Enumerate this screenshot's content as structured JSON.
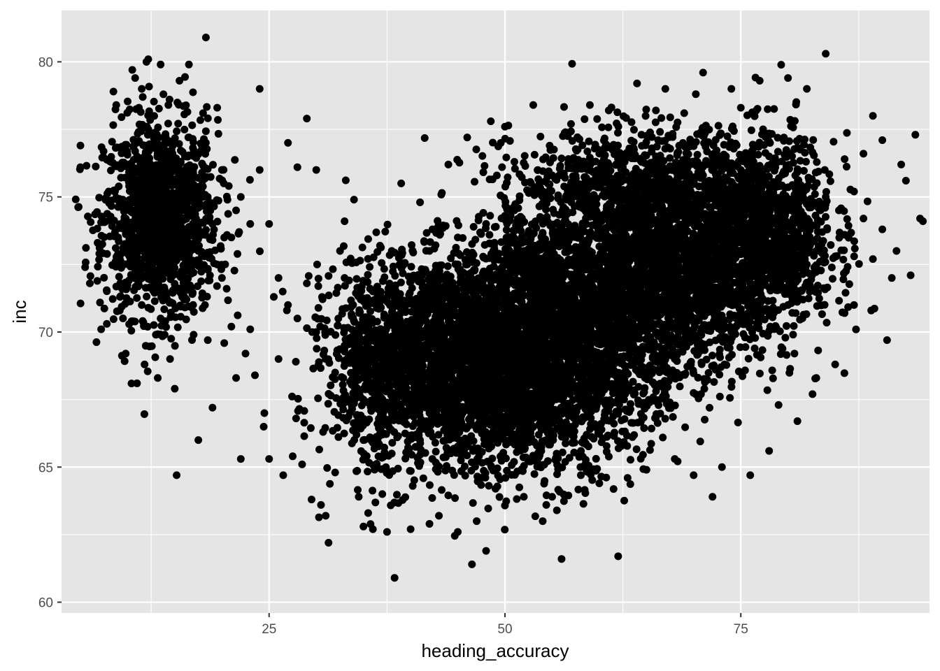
{
  "chart_data": {
    "type": "scatter",
    "title": "",
    "xlabel": "heading_accuracy",
    "ylabel": "inc",
    "xlim": [
      3,
      95
    ],
    "ylim": [
      59.6,
      81.9
    ],
    "x_ticks": [
      25,
      50,
      75
    ],
    "x_tick_labels": [
      "25",
      "50",
      "75"
    ],
    "y_ticks": [
      60,
      65,
      70,
      75,
      80
    ],
    "y_tick_labels": [
      "60",
      "65",
      "70",
      "75",
      "80"
    ],
    "grid": true,
    "legend": "none",
    "colors": {
      "panel": "#e5e5e5",
      "grid": "#ffffff",
      "point": "#000000"
    },
    "series": [
      {
        "points": [
          [
            5,
            76.9
          ],
          [
            5,
            76.1
          ],
          [
            5.5,
            72.4
          ],
          [
            6,
            71.8
          ],
          [
            7,
            72.9
          ],
          [
            7.2,
            70.1
          ],
          [
            7.8,
            70.3
          ],
          [
            8,
            75.2
          ],
          [
            8.5,
            78.9
          ],
          [
            8.8,
            78.4
          ],
          [
            9,
            73.5
          ],
          [
            9.2,
            71.3
          ],
          [
            9.5,
            74.9
          ],
          [
            9.8,
            69.2
          ],
          [
            10,
            76.2
          ],
          [
            10.2,
            72.8
          ],
          [
            10.5,
            79.7
          ],
          [
            10.8,
            79.4
          ],
          [
            11,
            68.1
          ],
          [
            11.2,
            78.3
          ],
          [
            11.5,
            79.0
          ],
          [
            11.8,
            68.8
          ],
          [
            12,
            80.0
          ],
          [
            12.2,
            70.9
          ],
          [
            12.5,
            74.3
          ],
          [
            12.8,
            73.2
          ],
          [
            13,
            69.9
          ],
          [
            13.2,
            68.3
          ],
          [
            13.5,
            79.9
          ],
          [
            13.8,
            78.8
          ],
          [
            14,
            70.4
          ],
          [
            14.5,
            69.0
          ],
          [
            15,
            67.9
          ],
          [
            15.2,
            64.7
          ],
          [
            15.5,
            79.3
          ],
          [
            16,
            71.2
          ],
          [
            16.5,
            79.9
          ],
          [
            17,
            69.9
          ],
          [
            17.5,
            66.0
          ],
          [
            18,
            78.1
          ],
          [
            18.3,
            80.9
          ],
          [
            18.5,
            69.7
          ],
          [
            19,
            67.2
          ],
          [
            19.5,
            78.3
          ],
          [
            20,
            72.0
          ],
          [
            20.5,
            71.6
          ],
          [
            21,
            70.2
          ],
          [
            21.5,
            68.3
          ],
          [
            22,
            65.3
          ],
          [
            22.5,
            69.2
          ],
          [
            23,
            70.1
          ],
          [
            23.5,
            68.4
          ],
          [
            24,
            79.0
          ],
          [
            24.5,
            67.0
          ],
          [
            25,
            65.3
          ],
          [
            25.5,
            71.3
          ],
          [
            26,
            69.0
          ],
          [
            26.5,
            64.7
          ],
          [
            27,
            77.0
          ],
          [
            27.5,
            65.4
          ],
          [
            28,
            76.1
          ],
          [
            28.5,
            65.1
          ],
          [
            29,
            77.9
          ],
          [
            29.5,
            63.8
          ],
          [
            30,
            76.0
          ],
          [
            30.5,
            63.6
          ],
          [
            31,
            63.2
          ],
          [
            31.3,
            62.2
          ],
          [
            32,
            64.8
          ],
          [
            33,
            74.1
          ],
          [
            34,
            74.9
          ],
          [
            34.5,
            63.9
          ],
          [
            35,
            62.8
          ],
          [
            35.5,
            63.3
          ],
          [
            36,
            62.7
          ],
          [
            37,
            64.0
          ],
          [
            37.5,
            62.6
          ],
          [
            38,
            73.0
          ],
          [
            38.3,
            60.9
          ],
          [
            39,
            75.5
          ],
          [
            40,
            62.7
          ],
          [
            41,
            74.8
          ],
          [
            42,
            62.9
          ],
          [
            43,
            63.2
          ],
          [
            44,
            76.2
          ],
          [
            45,
            62.6
          ],
          [
            46,
            77.2
          ],
          [
            46.5,
            61.4
          ],
          [
            47,
            63.0
          ],
          [
            48,
            61.9
          ],
          [
            48.5,
            77.8
          ],
          [
            49,
            64.2
          ],
          [
            50,
            77.6
          ],
          [
            51,
            76.3
          ],
          [
            52,
            63.9
          ],
          [
            53,
            78.4
          ],
          [
            54,
            63.0
          ],
          [
            55,
            63.9
          ],
          [
            55.5,
            63.4
          ],
          [
            56,
            61.6
          ],
          [
            57,
            77.7
          ],
          [
            58,
            65.0
          ],
          [
            59,
            78.4
          ],
          [
            60,
            64.4
          ],
          [
            61,
            78.2
          ],
          [
            62,
            61.7
          ],
          [
            63,
            64.6
          ],
          [
            64,
            79.2
          ],
          [
            65,
            64.9
          ],
          [
            66,
            78.2
          ],
          [
            67,
            79.0
          ],
          [
            68,
            65.3
          ],
          [
            69,
            78.1
          ],
          [
            70,
            64.7
          ],
          [
            71,
            79.6
          ],
          [
            72,
            63.9
          ],
          [
            73,
            65.0
          ],
          [
            74,
            79.0
          ],
          [
            75,
            78.3
          ],
          [
            76,
            64.7
          ],
          [
            77,
            79.3
          ],
          [
            78,
            65.6
          ],
          [
            79,
            67.3
          ],
          [
            80,
            79.4
          ],
          [
            81,
            66.7
          ],
          [
            82,
            79.0
          ],
          [
            83,
            68.3
          ],
          [
            84,
            80.3
          ],
          [
            85,
            68.8
          ],
          [
            86,
            76.4
          ],
          [
            87,
            71.0
          ],
          [
            88,
            76.6
          ],
          [
            89,
            78.0
          ],
          [
            90,
            77.1
          ],
          [
            90.5,
            69.7
          ],
          [
            91,
            72.0
          ],
          [
            91.5,
            73.0
          ],
          [
            92,
            76.2
          ],
          [
            92.5,
            75.6
          ],
          [
            93,
            72.1
          ],
          [
            93.5,
            77.3
          ],
          [
            94,
            74.2
          ],
          [
            94.3,
            74.1
          ],
          [
            89,
            72.7
          ],
          [
            90,
            73.8
          ],
          [
            88,
            74.2
          ],
          [
            87,
            75.2
          ],
          [
            86,
            73.6
          ],
          [
            85,
            72.8
          ],
          [
            86,
            70.7
          ],
          [
            12,
            75.0
          ],
          [
            13,
            74.0
          ],
          [
            14,
            76.0
          ],
          [
            15,
            73.0
          ],
          [
            16,
            75.5
          ],
          [
            17,
            74.5
          ],
          [
            11,
            76.5
          ],
          [
            10,
            73.0
          ],
          [
            12.5,
            72.0
          ],
          [
            14.5,
            77.0
          ],
          [
            16.5,
            72.5
          ],
          [
            18,
            75.0
          ],
          [
            19,
            74.0
          ],
          [
            20,
            76.0
          ],
          [
            21,
            73.5
          ],
          [
            22,
            75.0
          ],
          [
            23,
            74.0
          ],
          [
            11.5,
            71.0
          ],
          [
            13.5,
            70.5
          ],
          [
            15.5,
            71.5
          ],
          [
            17.5,
            73.0
          ],
          [
            19.5,
            72.5
          ],
          [
            21.5,
            74.5
          ],
          [
            9.5,
            74.0
          ],
          [
            10.5,
            75.5
          ],
          [
            12.2,
            77.5
          ],
          [
            14.2,
            73.5
          ],
          [
            16.2,
            76.5
          ],
          [
            18.2,
            71.0
          ],
          [
            20.2,
            75.5
          ],
          [
            24,
            76.0
          ],
          [
            25,
            74.0
          ],
          [
            26,
            72.0
          ],
          [
            27,
            71.0
          ],
          [
            28,
            70.5
          ],
          [
            29,
            71.8
          ],
          [
            30,
            70.0
          ],
          [
            31,
            69.0
          ],
          [
            32,
            68.5
          ],
          [
            33,
            69.5
          ],
          [
            34,
            68.0
          ],
          [
            35,
            67.5
          ],
          [
            36,
            69.0
          ],
          [
            37,
            68.0
          ],
          [
            38,
            67.0
          ],
          [
            39,
            69.5
          ],
          [
            40,
            68.5
          ],
          [
            41,
            70.0
          ],
          [
            42,
            69.0
          ],
          [
            43,
            68.0
          ],
          [
            44,
            70.5
          ],
          [
            45,
            69.5
          ],
          [
            46,
            68.5
          ],
          [
            47,
            71.0
          ],
          [
            48,
            70.0
          ],
          [
            49,
            69.0
          ],
          [
            50,
            71.5
          ],
          [
            51,
            70.5
          ],
          [
            52,
            69.5
          ],
          [
            53,
            72.0
          ],
          [
            54,
            71.0
          ],
          [
            55,
            70.0
          ],
          [
            56,
            72.5
          ],
          [
            57,
            71.5
          ],
          [
            58,
            70.5
          ],
          [
            59,
            73.0
          ],
          [
            60,
            72.0
          ],
          [
            61,
            71.0
          ],
          [
            62,
            73.5
          ],
          [
            63,
            72.5
          ],
          [
            64,
            71.5
          ],
          [
            65,
            74.0
          ],
          [
            66,
            73.0
          ],
          [
            67,
            72.0
          ],
          [
            68,
            74.5
          ],
          [
            69,
            73.5
          ],
          [
            70,
            72.5
          ],
          [
            71,
            75.0
          ],
          [
            72,
            74.0
          ],
          [
            73,
            73.0
          ],
          [
            74,
            75.5
          ],
          [
            75,
            74.5
          ],
          [
            76,
            73.5
          ],
          [
            77,
            75.0
          ],
          [
            78,
            74.0
          ],
          [
            79,
            73.0
          ],
          [
            80,
            74.5
          ],
          [
            81,
            73.5
          ],
          [
            82,
            74.0
          ],
          [
            83,
            73.0
          ],
          [
            35,
            66.0
          ],
          [
            38,
            65.5
          ],
          [
            41,
            66.0
          ],
          [
            44,
            65.5
          ],
          [
            47,
            66.5
          ],
          [
            50,
            66.0
          ],
          [
            53,
            66.5
          ],
          [
            56,
            67.0
          ],
          [
            59,
            67.5
          ],
          [
            62,
            68.0
          ],
          [
            65,
            68.5
          ],
          [
            68,
            69.0
          ],
          [
            71,
            69.5
          ],
          [
            74,
            70.0
          ],
          [
            77,
            70.5
          ],
          [
            80,
            71.0
          ],
          [
            83,
            71.5
          ],
          [
            36,
            71.5
          ],
          [
            39,
            72.5
          ],
          [
            42,
            73.0
          ],
          [
            45,
            73.5
          ],
          [
            48,
            74.0
          ],
          [
            51,
            74.5
          ],
          [
            54,
            75.0
          ],
          [
            57,
            75.5
          ],
          [
            60,
            76.0
          ],
          [
            63,
            76.5
          ],
          [
            66,
            76.5
          ],
          [
            69,
            76.0
          ],
          [
            72,
            76.5
          ],
          [
            75,
            76.0
          ],
          [
            78,
            76.5
          ],
          [
            81,
            75.5
          ],
          [
            84,
            75.0
          ],
          [
            33,
            72.0
          ],
          [
            40,
            72.0
          ],
          [
            46,
            72.5
          ],
          [
            52,
            73.0
          ],
          [
            58,
            73.5
          ],
          [
            64,
            74.0
          ],
          [
            70,
            74.5
          ],
          [
            76,
            72.0
          ],
          [
            82,
            72.5
          ],
          [
            42,
            67.0
          ],
          [
            48,
            67.5
          ],
          [
            54,
            68.0
          ],
          [
            60,
            68.5
          ],
          [
            66,
            70.0
          ],
          [
            72,
            71.0
          ],
          [
            78,
            72.0
          ]
        ]
      }
    ]
  }
}
